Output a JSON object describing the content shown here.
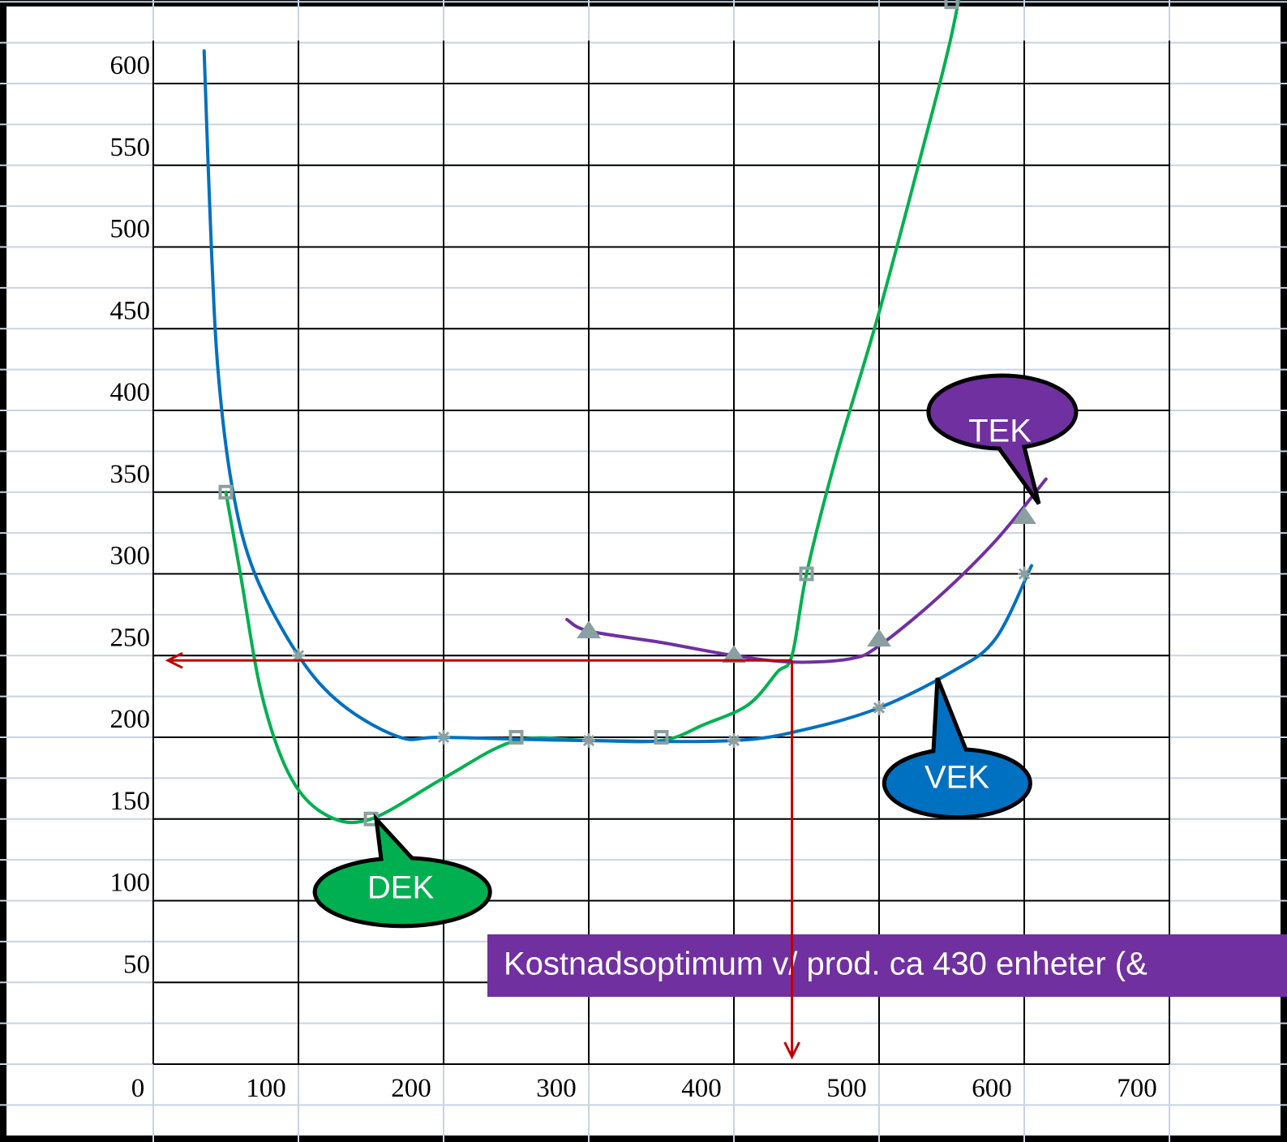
{
  "chart_data": {
    "type": "line",
    "x_ticks": [
      0,
      100,
      200,
      300,
      400,
      500,
      600,
      700
    ],
    "y_ticks": [
      50,
      100,
      150,
      200,
      250,
      300,
      350,
      400,
      450,
      500,
      550,
      600
    ],
    "xlim": [
      0,
      700
    ],
    "ylim": [
      0,
      600
    ],
    "grid": true,
    "series": [
      {
        "name": "DEK",
        "color": "#00b050",
        "marker": "square",
        "marker_points": [
          [
            50,
            350
          ],
          [
            150,
            150
          ],
          [
            250,
            200
          ],
          [
            350,
            200
          ],
          [
            450,
            300
          ],
          [
            550,
            650
          ]
        ],
        "curve": [
          [
            50,
            350
          ],
          [
            60,
            300
          ],
          [
            75,
            225
          ],
          [
            95,
            175
          ],
          [
            120,
            152
          ],
          [
            150,
            150
          ],
          [
            200,
            175
          ],
          [
            250,
            198
          ],
          [
            300,
            198
          ],
          [
            350,
            198
          ],
          [
            380,
            208
          ],
          [
            410,
            220
          ],
          [
            430,
            240
          ],
          [
            440,
            250
          ],
          [
            450,
            300
          ],
          [
            470,
            370
          ],
          [
            500,
            460
          ],
          [
            530,
            560
          ],
          [
            550,
            630
          ],
          [
            565,
            700
          ]
        ]
      },
      {
        "name": "VEK",
        "color": "#0070c0",
        "marker": "star",
        "marker_points": [
          [
            100,
            250
          ],
          [
            200,
            200
          ],
          [
            300,
            198
          ],
          [
            400,
            198
          ],
          [
            500,
            218
          ],
          [
            600,
            300
          ]
        ],
        "curve": [
          [
            35,
            620
          ],
          [
            40,
            500
          ],
          [
            45,
            420
          ],
          [
            55,
            350
          ],
          [
            70,
            300
          ],
          [
            100,
            250
          ],
          [
            130,
            220
          ],
          [
            170,
            200
          ],
          [
            200,
            200
          ],
          [
            300,
            198
          ],
          [
            400,
            198
          ],
          [
            450,
            205
          ],
          [
            500,
            218
          ],
          [
            550,
            240
          ],
          [
            580,
            260
          ],
          [
            605,
            305
          ]
        ]
      },
      {
        "name": "TEK",
        "color": "#7030a0",
        "marker": "triangle",
        "marker_points": [
          [
            300,
            265
          ],
          [
            400,
            250
          ],
          [
            500,
            260
          ],
          [
            600,
            335
          ]
        ],
        "curve": [
          [
            285,
            272
          ],
          [
            300,
            265
          ],
          [
            350,
            258
          ],
          [
            400,
            250
          ],
          [
            440,
            246
          ],
          [
            480,
            248
          ],
          [
            500,
            256
          ],
          [
            540,
            285
          ],
          [
            580,
            320
          ],
          [
            615,
            358
          ]
        ]
      }
    ],
    "annotations": {
      "optimum_x": 440,
      "optimum_y": 247,
      "arrow_color": "#c00000"
    },
    "callouts": [
      {
        "label": "TEK",
        "color": "#7030a0"
      },
      {
        "label": "VEK",
        "color": "#0070c0"
      },
      {
        "label": "DEK",
        "color": "#00b050"
      }
    ],
    "banner": {
      "text": "Kostnadsoptimum v/ prod.  ca 430 enheter (&",
      "color": "#7030a0"
    }
  }
}
